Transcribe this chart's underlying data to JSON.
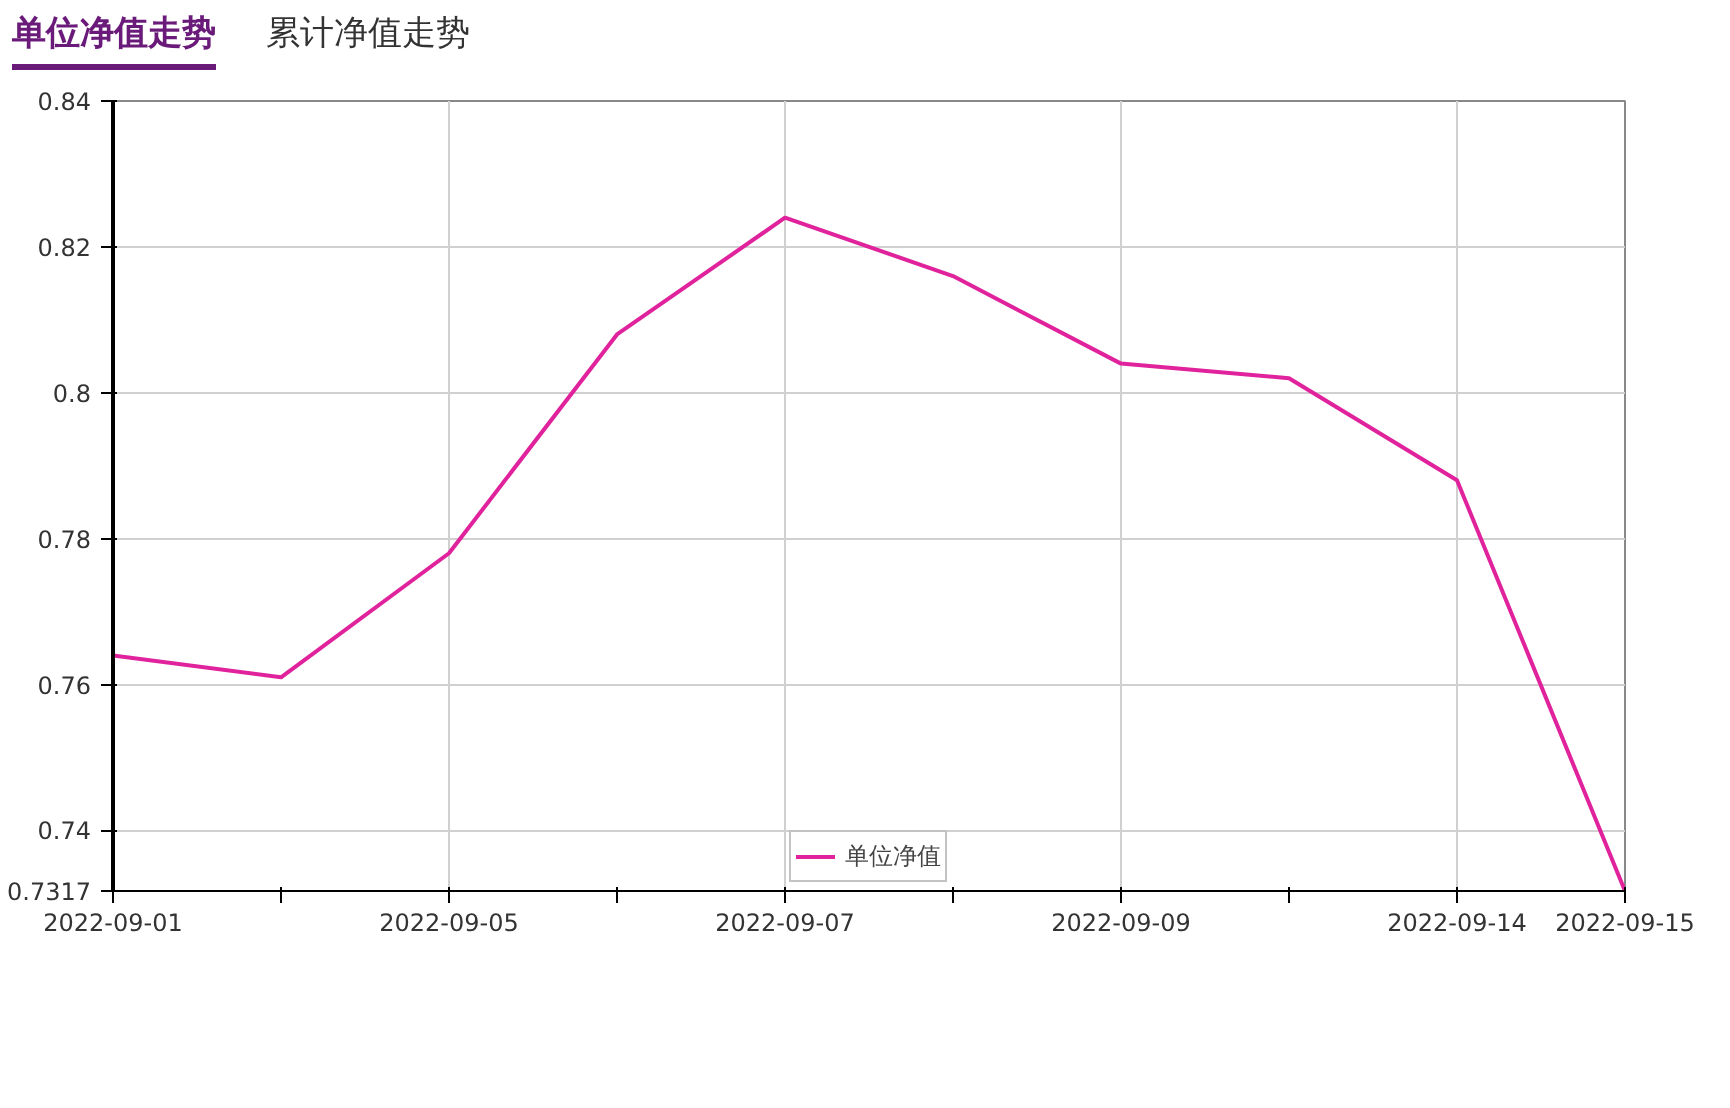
{
  "chart_data": {
    "type": "line",
    "title": "单位净值走势",
    "annotations": [
      "累计净值走势"
    ],
    "categories": [
      "2022-09-01",
      null,
      "2022-09-05",
      null,
      "2022-09-07",
      null,
      "2022-09-09",
      null,
      "2022-09-14",
      "2022-09-15"
    ],
    "series": [
      {
        "name": "单位净值",
        "color": "#e0239c",
        "values": [
          0.764,
          0.761,
          0.778,
          0.808,
          0.824,
          0.816,
          0.804,
          0.802,
          0.788,
          0.7317
        ]
      }
    ],
    "ylim": [
      0.7317,
      0.84
    ],
    "yticks": [
      0.7317,
      0.74,
      0.76,
      0.78,
      0.8,
      0.82,
      0.84
    ],
    "grid": true,
    "legend": "bottom",
    "marker": "none",
    "line_style": "solid"
  }
}
